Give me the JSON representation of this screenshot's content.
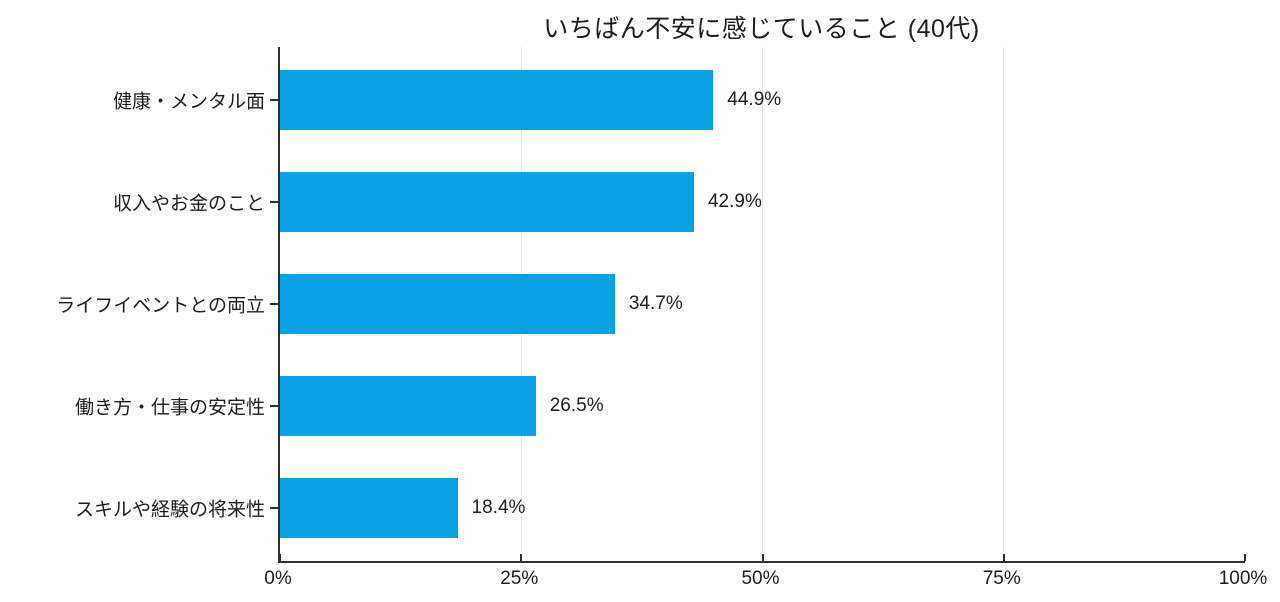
{
  "chart_data": {
    "type": "bar",
    "orientation": "horizontal",
    "title": "いちばん不安に感じていること (40代)",
    "categories": [
      "健康・メンタル面",
      "収入やお金のこと",
      "ライフイベントとの両立",
      "働き方・仕事の安定性",
      "スキルや経験の将来性"
    ],
    "values": [
      44.9,
      42.9,
      34.7,
      26.5,
      18.4
    ],
    "value_labels": [
      "44.9%",
      "42.9%",
      "34.7%",
      "26.5%",
      "18.4%"
    ],
    "x_tick_labels": [
      "0%",
      "25%",
      "50%",
      "75%",
      "100%"
    ],
    "x_tick_values": [
      0,
      25,
      50,
      75,
      100
    ],
    "gridline_values": [
      25,
      50,
      75
    ],
    "xlim": [
      0,
      100
    ],
    "legend": "none",
    "grid": "vertical-light",
    "colors": {
      "bar": "#0aa1e2",
      "axis": "#2f2f2f",
      "grid": "#e8e8e8",
      "text": "#1d1d1d",
      "background": "#ffffff"
    }
  }
}
